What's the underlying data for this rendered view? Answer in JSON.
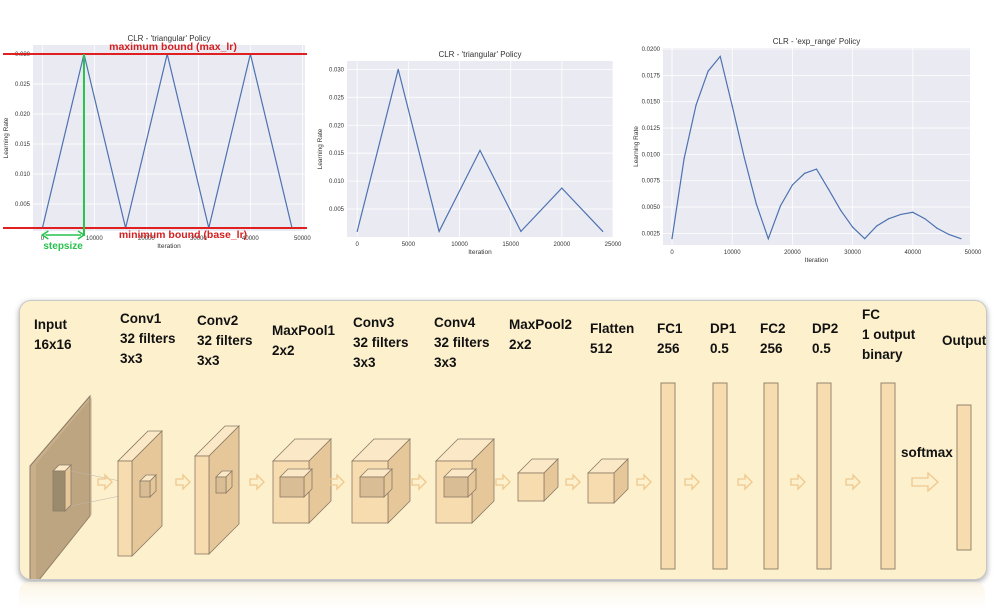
{
  "charts": [
    {
      "chart_data": {
        "type": "line",
        "title": "CLR - 'triangular' Policy",
        "xlabel": "Iteration",
        "ylabel": "Learning Rate",
        "x": [
          0,
          8000,
          16000,
          24000,
          32000,
          40000,
          48000
        ],
        "series": [
          {
            "values": [
              0.001,
              0.03,
              0.001,
              0.03,
              0.001,
              0.03,
              0.001
            ]
          }
        ],
        "xlim": [
          -1800,
          50500
        ],
        "ylim": [
          0.0005,
          0.0315
        ],
        "xticks": [
          0,
          10000,
          20000,
          30000,
          40000,
          50000
        ],
        "yticks": [
          0.005,
          0.01,
          0.015,
          0.02,
          0.025,
          0.03
        ],
        "grid": true,
        "annotations": {
          "max_label": "maximum bound (max_lr)",
          "min_label": "minimum bound (base_lr)",
          "step_label": "stepsize",
          "max_value": 0.03,
          "min_value": 0.001,
          "step_start": 0,
          "step_end": 8000
        }
      }
    },
    {
      "chart_data": {
        "type": "line",
        "title": "CLR - 'triangular' Policy",
        "xlabel": "Iteration",
        "ylabel": "Learning Rate",
        "x": [
          0,
          4000,
          8000,
          12000,
          16000,
          20000,
          24000
        ],
        "series": [
          {
            "values": [
              0.001,
              0.03,
              0.001,
              0.0155,
              0.001,
              0.00875,
              0.001
            ]
          }
        ],
        "xlim": [
          -1000,
          25000
        ],
        "ylim": [
          0.0,
          0.0315
        ],
        "xticks": [
          0,
          5000,
          10000,
          15000,
          20000,
          25000
        ],
        "yticks": [
          0.005,
          0.01,
          0.015,
          0.02,
          0.025,
          0.03
        ],
        "grid": true
      }
    },
    {
      "chart_data": {
        "type": "line",
        "title": "CLR - 'exp_range' Policy",
        "xlabel": "Iteration",
        "ylabel": "Learning Rate",
        "x": [
          0,
          2000,
          4000,
          6000,
          8000,
          10000,
          12000,
          14000,
          16000,
          18000,
          20000,
          22000,
          24000,
          26000,
          28000,
          30000,
          32000,
          34000,
          36000,
          38000,
          40000,
          42000,
          44000,
          46000,
          48000
        ],
        "series": [
          {
            "values": [
              0.002,
              0.0096,
              0.0147,
              0.0179,
              0.0193,
              0.0146,
              0.0097,
              0.0053,
              0.002,
              0.0051,
              0.0071,
              0.0082,
              0.0086,
              0.0067,
              0.0047,
              0.0031,
              0.002,
              0.0032,
              0.0039,
              0.0043,
              0.0045,
              0.0039,
              0.003,
              0.0024,
              0.002
            ]
          }
        ],
        "xlim": [
          -1500,
          49500
        ],
        "ylim": [
          0.0014,
          0.0201
        ],
        "xticks": [
          0,
          10000,
          20000,
          30000,
          40000,
          50000
        ],
        "yticks": [
          0.0025,
          0.005,
          0.0075,
          0.01,
          0.0125,
          0.015,
          0.0175,
          0.02
        ],
        "grid": true
      }
    }
  ],
  "cnn": {
    "layers": [
      {
        "name": "Input",
        "line2": "16x16",
        "line3": ""
      },
      {
        "name": "Conv1",
        "line2": "32 filters",
        "line3": "3x3"
      },
      {
        "name": "Conv2",
        "line2": "32 filters",
        "line3": "3x3"
      },
      {
        "name": "MaxPool1",
        "line2": "2x2",
        "line3": ""
      },
      {
        "name": "Conv3",
        "line2": "32 filters",
        "line3": "3x3"
      },
      {
        "name": "Conv4",
        "line2": "32 filters",
        "line3": "3x3"
      },
      {
        "name": "MaxPool2",
        "line2": "2x2",
        "line3": ""
      },
      {
        "name": "Flatten",
        "line2": "512",
        "line3": ""
      },
      {
        "name": "FC1",
        "line2": "256",
        "line3": ""
      },
      {
        "name": "DP1",
        "line2": "0.5",
        "line3": ""
      },
      {
        "name": "FC2",
        "line2": "256",
        "line3": ""
      },
      {
        "name": "DP2",
        "line2": "0.5",
        "line3": ""
      },
      {
        "name": "FC",
        "line2": "1 output",
        "line3": "binary"
      },
      {
        "name": "Output",
        "line2": "",
        "line3": ""
      }
    ],
    "softmax": "softmax",
    "colors": {
      "panel": "#fdf0cd",
      "block": "#f7dcb0",
      "stroke": "#8a7a66",
      "arrow": "#f0c88e"
    }
  }
}
